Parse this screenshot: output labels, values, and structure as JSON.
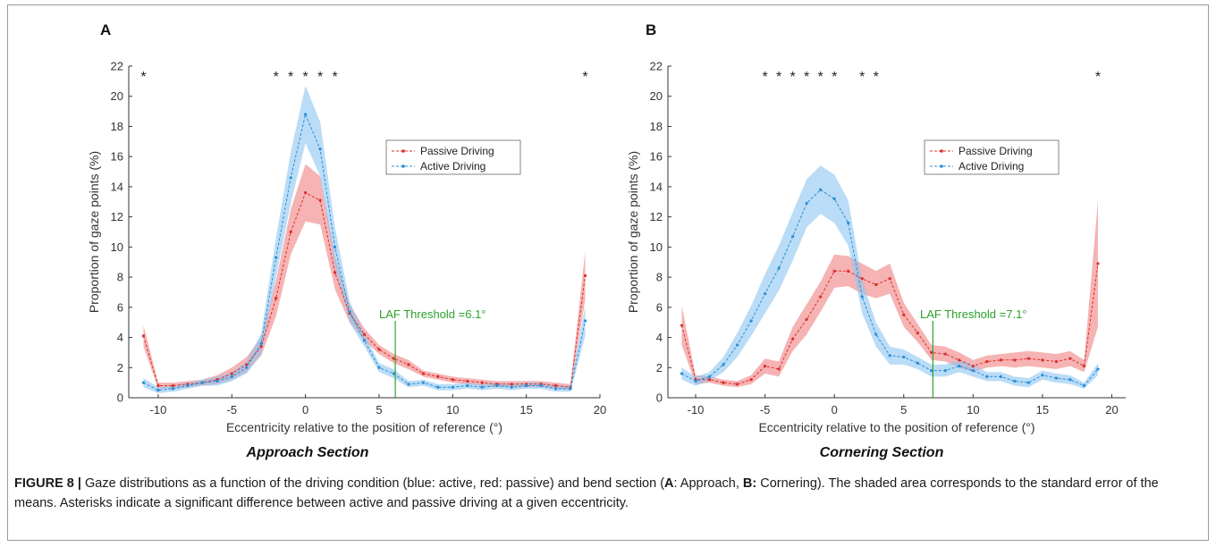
{
  "panels": [
    {
      "letter": "A",
      "section_title": "Approach Section",
      "threshold_label": "LAF Threshold =6.1°",
      "threshold_value": 6.1
    },
    {
      "letter": "B",
      "section_title": "Cornering Section",
      "threshold_label": "LAF Threshold =7.1°",
      "threshold_value": 7.1
    }
  ],
  "caption": {
    "label": "FIGURE 8 |",
    "text_1": " Gaze distributions as a function of the driving condition (blue: active, red: passive) and bend section (",
    "a_letter": "A",
    "text_2": ": Approach, ",
    "b_letter": "B:",
    "text_3": " Cornering). The shaded area corresponds to the standard error of the means. Asterisks indicate a significant difference between active and passive driving at a given eccentricity."
  },
  "colors": {
    "passive": "#d9302b",
    "active": "#2b8ed8",
    "passive_band": "#f08080",
    "active_band": "#8cc4f0",
    "threshold": "#2ca02c"
  },
  "chart_data": [
    {
      "type": "line",
      "xlabel": "Eccentricity relative to the position of reference (°)",
      "ylabel": "Proportion of gaze points (%)",
      "xlim": [
        -12,
        20
      ],
      "ylim": [
        0,
        22
      ],
      "xticks": [
        -10,
        -5,
        0,
        5,
        10,
        15,
        20
      ],
      "yticks": [
        0,
        2,
        4,
        6,
        8,
        10,
        12,
        14,
        16,
        18,
        20,
        22
      ],
      "legend_position": "top-right",
      "significance_x": [
        -11,
        -2,
        -1,
        0,
        1,
        2,
        19
      ],
      "significance_marker": "*",
      "x": [
        -11,
        -10,
        -9,
        -8,
        -7,
        -6,
        -5,
        -4,
        -3,
        -2,
        -1,
        0,
        1,
        2,
        3,
        4,
        5,
        6,
        7,
        8,
        9,
        10,
        11,
        12,
        13,
        14,
        15,
        16,
        17,
        18,
        19
      ],
      "series": [
        {
          "name": "Passive Driving",
          "values": [
            4.1,
            0.8,
            0.8,
            0.9,
            1.0,
            1.2,
            1.6,
            2.2,
            3.4,
            6.6,
            11.0,
            13.6,
            13.1,
            8.3,
            5.6,
            4.2,
            3.2,
            2.6,
            2.2,
            1.6,
            1.4,
            1.2,
            1.1,
            1.0,
            0.9,
            0.9,
            0.9,
            0.9,
            0.8,
            0.7,
            8.1
          ],
          "error": [
            0.7,
            0.2,
            0.2,
            0.2,
            0.2,
            0.3,
            0.4,
            0.5,
            0.6,
            1.2,
            1.5,
            1.9,
            1.6,
            1.1,
            0.6,
            0.4,
            0.3,
            0.3,
            0.3,
            0.2,
            0.2,
            0.2,
            0.2,
            0.2,
            0.2,
            0.2,
            0.2,
            0.2,
            0.2,
            0.2,
            1.6
          ]
        },
        {
          "name": "Active Driving",
          "values": [
            1.0,
            0.5,
            0.6,
            0.8,
            1.0,
            1.1,
            1.4,
            2.0,
            3.6,
            9.3,
            14.6,
            18.8,
            16.5,
            10.0,
            5.7,
            3.8,
            2.0,
            1.6,
            0.9,
            1.0,
            0.7,
            0.7,
            0.8,
            0.7,
            0.8,
            0.7,
            0.8,
            0.8,
            0.6,
            0.6,
            5.1
          ],
          "error": [
            0.3,
            0.2,
            0.2,
            0.2,
            0.2,
            0.3,
            0.3,
            0.4,
            0.7,
            1.3,
            1.7,
            1.9,
            1.8,
            1.3,
            0.7,
            0.4,
            0.3,
            0.3,
            0.2,
            0.2,
            0.2,
            0.2,
            0.2,
            0.2,
            0.2,
            0.2,
            0.2,
            0.2,
            0.2,
            0.2,
            1.0
          ]
        }
      ]
    },
    {
      "type": "line",
      "xlabel": "Eccentricity relative to the position of reference (°)",
      "ylabel": "Proportion of gaze points (%)",
      "xlim": [
        -12,
        21
      ],
      "ylim": [
        0,
        22
      ],
      "xticks": [
        -10,
        -5,
        0,
        5,
        10,
        15,
        20
      ],
      "yticks": [
        0,
        2,
        4,
        6,
        8,
        10,
        12,
        14,
        16,
        18,
        20,
        22
      ],
      "legend_position": "top-right",
      "significance_x": [
        -5,
        -4,
        -3,
        -2,
        -1,
        0,
        2,
        3,
        19
      ],
      "significance_marker": "*",
      "x": [
        -11,
        -10,
        -9,
        -8,
        -7,
        -6,
        -5,
        -4,
        -3,
        -2,
        -1,
        0,
        1,
        2,
        3,
        4,
        5,
        6,
        7,
        8,
        9,
        10,
        11,
        12,
        13,
        14,
        15,
        16,
        17,
        18,
        19
      ],
      "series": [
        {
          "name": "Passive Driving",
          "values": [
            4.8,
            1.2,
            1.2,
            1.0,
            0.9,
            1.2,
            2.1,
            1.9,
            3.9,
            5.2,
            6.7,
            8.4,
            8.4,
            7.9,
            7.5,
            7.9,
            5.5,
            4.3,
            3.0,
            2.9,
            2.5,
            2.1,
            2.4,
            2.5,
            2.5,
            2.6,
            2.5,
            2.4,
            2.6,
            2.1,
            8.9
          ],
          "error": [
            1.3,
            0.3,
            0.2,
            0.2,
            0.2,
            0.3,
            0.5,
            0.5,
            0.8,
            1.0,
            1.0,
            1.1,
            1.0,
            1.0,
            0.9,
            1.0,
            0.8,
            0.6,
            0.5,
            0.5,
            0.5,
            0.4,
            0.4,
            0.4,
            0.5,
            0.5,
            0.5,
            0.5,
            0.5,
            0.4,
            4.2
          ]
        },
        {
          "name": "Active Driving",
          "values": [
            1.6,
            1.1,
            1.4,
            2.2,
            3.5,
            5.1,
            6.9,
            8.6,
            10.7,
            12.9,
            13.8,
            13.2,
            11.6,
            6.7,
            4.2,
            2.8,
            2.7,
            2.3,
            1.8,
            1.8,
            2.1,
            1.8,
            1.4,
            1.4,
            1.1,
            1.0,
            1.5,
            1.3,
            1.2,
            0.8,
            1.9
          ],
          "error": [
            0.4,
            0.3,
            0.3,
            0.5,
            0.8,
            1.0,
            1.3,
            1.5,
            1.6,
            1.6,
            1.6,
            1.6,
            1.5,
            1.1,
            0.8,
            0.6,
            0.5,
            0.4,
            0.4,
            0.4,
            0.4,
            0.4,
            0.3,
            0.3,
            0.3,
            0.3,
            0.3,
            0.3,
            0.3,
            0.2,
            0.4
          ]
        }
      ]
    }
  ]
}
